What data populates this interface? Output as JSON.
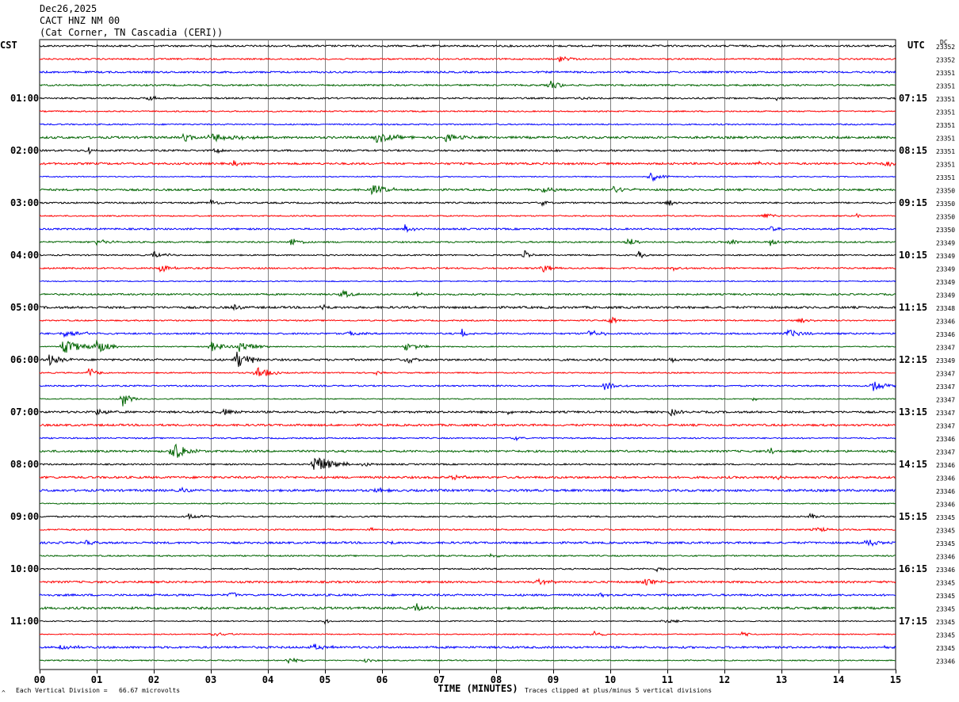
{
  "header": {
    "date": "Dec26,2025",
    "station": "CACT HNZ NM 00",
    "location": "(Cat Corner, TN Cascadia (CERI))"
  },
  "left_tz": "CST",
  "right_tz": "UTC",
  "dc_label": "DC",
  "footer": {
    "scale_note": "Each Vertical Division =   66.67 microvolts",
    "clip_note": "Traces clipped at plus/minus 5 vertical divisions",
    "marker": "^"
  },
  "colors": {
    "trace_cycle": [
      "#000000",
      "#ff0000",
      "#0000ff",
      "#006400"
    ],
    "grid": "#808080"
  },
  "chart_data": {
    "type": "line",
    "title": "",
    "xlabel": "TIME (MINUTES)",
    "ylabel": "",
    "xlim": [
      0,
      15
    ],
    "x_ticks": [
      "00",
      "01",
      "02",
      "03",
      "04",
      "05",
      "06",
      "07",
      "08",
      "09",
      "10",
      "11",
      "12",
      "13",
      "14",
      "15"
    ],
    "rows": 48,
    "minutes_per_row": 15,
    "left_hour_labels": [
      "01:00",
      "02:00",
      "03:00",
      "04:00",
      "05:00",
      "06:00",
      "07:00",
      "08:00",
      "09:00",
      "10:00",
      "11:00"
    ],
    "right_hour_labels": [
      "07:15",
      "08:15",
      "09:15",
      "10:15",
      "11:15",
      "12:15",
      "13:15",
      "14:15",
      "15:15",
      "16:15",
      "17:15"
    ],
    "hour_label_rows": [
      4,
      8,
      12,
      16,
      20,
      24,
      28,
      32,
      36,
      40,
      44
    ],
    "dc_offsets": [
      "23352",
      "23352",
      "23351",
      "23351",
      "23351",
      "23351",
      "23351",
      "23351",
      "23351",
      "23351",
      "23351",
      "23350",
      "23350",
      "23350",
      "23350",
      "23349",
      "23349",
      "23349",
      "23349",
      "23349",
      "23348",
      "23346",
      "23346",
      "23347",
      "23349",
      "23347",
      "23347",
      "23347",
      "23347",
      "23347",
      "23346",
      "23347",
      "23346",
      "23346",
      "23346",
      "23346",
      "23345",
      "23345",
      "23345",
      "23346",
      "23346",
      "23345",
      "23345",
      "23345",
      "23345",
      "23345",
      "23345",
      "23346"
    ],
    "events": [
      {
        "row": 1,
        "x": 9.1,
        "amp": 5,
        "w": 0.25
      },
      {
        "row": 3,
        "x": 8.95,
        "amp": 7,
        "w": 0.2
      },
      {
        "row": 4,
        "x": 1.9,
        "amp": 4,
        "w": 0.2
      },
      {
        "row": 4,
        "x": 9.5,
        "amp": 3,
        "w": 0.1
      },
      {
        "row": 4,
        "x": 12.9,
        "amp": 3,
        "w": 0.1
      },
      {
        "row": 7,
        "x": 2.5,
        "amp": 5,
        "w": 0.3
      },
      {
        "row": 7,
        "x": 3.0,
        "amp": 6,
        "w": 0.7
      },
      {
        "row": 7,
        "x": 5.9,
        "amp": 6,
        "w": 0.5
      },
      {
        "row": 7,
        "x": 7.1,
        "amp": 5,
        "w": 0.4
      },
      {
        "row": 8,
        "x": 0.85,
        "amp": 7,
        "w": 0.05
      },
      {
        "row": 8,
        "x": 3.1,
        "amp": 6,
        "w": 0.05
      },
      {
        "row": 8,
        "x": 9.1,
        "amp": 3,
        "w": 0.1
      },
      {
        "row": 9,
        "x": 3.4,
        "amp": 4,
        "w": 0.1
      },
      {
        "row": 9,
        "x": 12.6,
        "amp": 4,
        "w": 0.2
      },
      {
        "row": 9,
        "x": 14.8,
        "amp": 5,
        "w": 0.3
      },
      {
        "row": 10,
        "x": 10.7,
        "amp": 8,
        "w": 0.2
      },
      {
        "row": 11,
        "x": 5.8,
        "amp": 7,
        "w": 0.4
      },
      {
        "row": 11,
        "x": 8.8,
        "amp": 4,
        "w": 0.3
      },
      {
        "row": 11,
        "x": 10.0,
        "amp": 6,
        "w": 0.3
      },
      {
        "row": 12,
        "x": 3.0,
        "amp": 5,
        "w": 0.15
      },
      {
        "row": 12,
        "x": 8.8,
        "amp": 5,
        "w": 0.1
      },
      {
        "row": 12,
        "x": 11.0,
        "amp": 6,
        "w": 0.15
      },
      {
        "row": 13,
        "x": 12.7,
        "amp": 4,
        "w": 0.2
      },
      {
        "row": 13,
        "x": 14.3,
        "amp": 4,
        "w": 0.1
      },
      {
        "row": 14,
        "x": 6.4,
        "amp": 6,
        "w": 0.15
      },
      {
        "row": 14,
        "x": 12.8,
        "amp": 5,
        "w": 0.15
      },
      {
        "row": 15,
        "x": 1.0,
        "amp": 4,
        "w": 0.3
      },
      {
        "row": 15,
        "x": 4.4,
        "amp": 6,
        "w": 0.2
      },
      {
        "row": 15,
        "x": 10.3,
        "amp": 5,
        "w": 0.3
      },
      {
        "row": 15,
        "x": 12.1,
        "amp": 6,
        "w": 0.15
      },
      {
        "row": 15,
        "x": 12.8,
        "amp": 6,
        "w": 0.2
      },
      {
        "row": 16,
        "x": 2.0,
        "amp": 5,
        "w": 0.3
      },
      {
        "row": 16,
        "x": 8.5,
        "amp": 7,
        "w": 0.1
      },
      {
        "row": 16,
        "x": 10.5,
        "amp": 5,
        "w": 0.1
      },
      {
        "row": 17,
        "x": 2.1,
        "amp": 6,
        "w": 0.2
      },
      {
        "row": 17,
        "x": 8.8,
        "amp": 7,
        "w": 0.2
      },
      {
        "row": 17,
        "x": 11.1,
        "amp": 4,
        "w": 0.2
      },
      {
        "row": 19,
        "x": 5.3,
        "amp": 6,
        "w": 0.2
      },
      {
        "row": 19,
        "x": 6.6,
        "amp": 3,
        "w": 0.1
      },
      {
        "row": 20,
        "x": 3.4,
        "amp": 6,
        "w": 0.1
      },
      {
        "row": 20,
        "x": 4.95,
        "amp": 6,
        "w": 0.1
      },
      {
        "row": 21,
        "x": 10.0,
        "amp": 6,
        "w": 0.15
      },
      {
        "row": 21,
        "x": 13.3,
        "amp": 5,
        "w": 0.2
      },
      {
        "row": 22,
        "x": 0.4,
        "amp": 5,
        "w": 0.6
      },
      {
        "row": 22,
        "x": 5.4,
        "amp": 5,
        "w": 0.2
      },
      {
        "row": 22,
        "x": 7.4,
        "amp": 7,
        "w": 0.1
      },
      {
        "row": 22,
        "x": 9.6,
        "amp": 5,
        "w": 0.3
      },
      {
        "row": 22,
        "x": 13.1,
        "amp": 5,
        "w": 0.4
      },
      {
        "row": 23,
        "x": 0.4,
        "amp": 9,
        "w": 0.6
      },
      {
        "row": 23,
        "x": 1.0,
        "amp": 9,
        "w": 0.3
      },
      {
        "row": 23,
        "x": 3.0,
        "amp": 7,
        "w": 0.4
      },
      {
        "row": 23,
        "x": 3.5,
        "amp": 7,
        "w": 0.4
      },
      {
        "row": 23,
        "x": 6.4,
        "amp": 5,
        "w": 0.4
      },
      {
        "row": 24,
        "x": 0.15,
        "amp": 7,
        "w": 0.3
      },
      {
        "row": 24,
        "x": 3.45,
        "amp": 13,
        "w": 0.3
      },
      {
        "row": 24,
        "x": 6.45,
        "amp": 6,
        "w": 0.2
      },
      {
        "row": 24,
        "x": 11.05,
        "amp": 5,
        "w": 0.1
      },
      {
        "row": 25,
        "x": 0.85,
        "amp": 7,
        "w": 0.2
      },
      {
        "row": 25,
        "x": 3.8,
        "amp": 9,
        "w": 0.3
      },
      {
        "row": 25,
        "x": 5.9,
        "amp": 3,
        "w": 0.1
      },
      {
        "row": 26,
        "x": 9.9,
        "amp": 6,
        "w": 0.3
      },
      {
        "row": 26,
        "x": 14.6,
        "amp": 8,
        "w": 0.3
      },
      {
        "row": 27,
        "x": 1.45,
        "amp": 10,
        "w": 0.2
      },
      {
        "row": 27,
        "x": 12.5,
        "amp": 3,
        "w": 0.1
      },
      {
        "row": 28,
        "x": 1.0,
        "amp": 5,
        "w": 0.3
      },
      {
        "row": 28,
        "x": 3.2,
        "amp": 5,
        "w": 0.3
      },
      {
        "row": 28,
        "x": 8.2,
        "amp": 3,
        "w": 0.1
      },
      {
        "row": 28,
        "x": 11.05,
        "amp": 5,
        "w": 0.2
      },
      {
        "row": 29,
        "x": 8.9,
        "amp": 3,
        "w": 0.1
      },
      {
        "row": 30,
        "x": 8.3,
        "amp": 3,
        "w": 0.2
      },
      {
        "row": 31,
        "x": 2.3,
        "amp": 13,
        "w": 0.4
      },
      {
        "row": 31,
        "x": 12.8,
        "amp": 6,
        "w": 0.1
      },
      {
        "row": 32,
        "x": 4.8,
        "amp": 12,
        "w": 0.5
      },
      {
        "row": 32,
        "x": 5.7,
        "amp": 4,
        "w": 0.1
      },
      {
        "row": 33,
        "x": 7.2,
        "amp": 5,
        "w": 0.2
      },
      {
        "row": 33,
        "x": 12.9,
        "amp": 4,
        "w": 0.2
      },
      {
        "row": 34,
        "x": 2.5,
        "amp": 4,
        "w": 0.2
      },
      {
        "row": 34,
        "x": 5.9,
        "amp": 4,
        "w": 0.2
      },
      {
        "row": 36,
        "x": 2.6,
        "amp": 4,
        "w": 0.3
      },
      {
        "row": 36,
        "x": 13.5,
        "amp": 4,
        "w": 0.2
      },
      {
        "row": 37,
        "x": 5.8,
        "amp": 3,
        "w": 0.1
      },
      {
        "row": 37,
        "x": 13.6,
        "amp": 4,
        "w": 0.2
      },
      {
        "row": 38,
        "x": 0.8,
        "amp": 3,
        "w": 0.2
      },
      {
        "row": 38,
        "x": 6.1,
        "amp": 5,
        "w": 0.1
      },
      {
        "row": 38,
        "x": 14.5,
        "amp": 5,
        "w": 0.3
      },
      {
        "row": 39,
        "x": 7.9,
        "amp": 3,
        "w": 0.2
      },
      {
        "row": 40,
        "x": 10.8,
        "amp": 4,
        "w": 0.3
      },
      {
        "row": 41,
        "x": 8.7,
        "amp": 4,
        "w": 0.3
      },
      {
        "row": 41,
        "x": 10.6,
        "amp": 4,
        "w": 0.3
      },
      {
        "row": 42,
        "x": 3.35,
        "amp": 6,
        "w": 0.1
      },
      {
        "row": 42,
        "x": 9.8,
        "amp": 3,
        "w": 0.1
      },
      {
        "row": 43,
        "x": 6.6,
        "amp": 7,
        "w": 0.2
      },
      {
        "row": 44,
        "x": 5.0,
        "amp": 3,
        "w": 0.2
      },
      {
        "row": 44,
        "x": 10.9,
        "amp": 3,
        "w": 0.3
      },
      {
        "row": 45,
        "x": 3.0,
        "amp": 4,
        "w": 0.4
      },
      {
        "row": 45,
        "x": 9.7,
        "amp": 4,
        "w": 0.3
      },
      {
        "row": 45,
        "x": 12.3,
        "amp": 3,
        "w": 0.2
      },
      {
        "row": 46,
        "x": 0.3,
        "amp": 4,
        "w": 0.4
      },
      {
        "row": 46,
        "x": 4.8,
        "amp": 4,
        "w": 0.3
      },
      {
        "row": 46,
        "x": 14.8,
        "amp": 4,
        "w": 0.1
      },
      {
        "row": 47,
        "x": 4.35,
        "amp": 5,
        "w": 0.2
      },
      {
        "row": 47,
        "x": 5.7,
        "amp": 3,
        "w": 0.2
      }
    ]
  }
}
